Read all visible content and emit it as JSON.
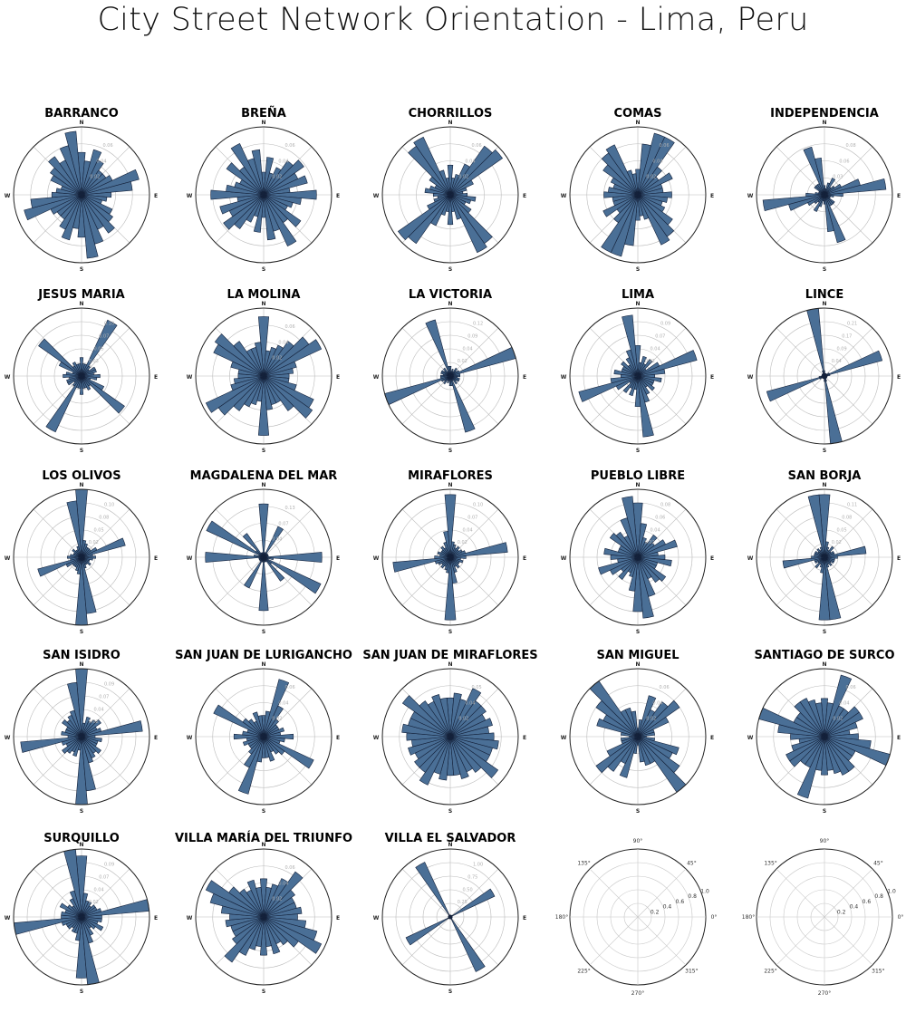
{
  "title": "City Street Network Orientation - Lima, Peru",
  "style": {
    "bar_fill": "#4a6f96",
    "bar_stroke": "#14213a",
    "grid_color": "#bbbbbb",
    "tick_label_color": "#b0b0b0"
  },
  "compass_labels": {
    "n": "N",
    "e": "E",
    "s": "S",
    "w": "W"
  },
  "empty_polar_labels": {
    "angles": [
      "90°",
      "45°",
      "0°",
      "315°",
      "270°",
      "225°",
      "180°",
      "135°"
    ],
    "radial": [
      "0.2",
      "0.4",
      "0.6",
      "0.8",
      "1.0"
    ]
  },
  "chart_data": [
    {
      "type": "polar-bar",
      "title": "BARRANCO",
      "radial_ticks": [
        "0.02",
        "0.04",
        "0.06"
      ],
      "rmax": 0.08,
      "bearing_step_deg": 10,
      "values": [
        0.05,
        0.04,
        0.055,
        0.045,
        0.035,
        0.035,
        0.04,
        0.07,
        0.06,
        0.035,
        0.03,
        0.025,
        0.04,
        0.045,
        0.055,
        0.045,
        0.06,
        0.075
      ]
    },
    {
      "type": "polar-bar",
      "title": "BREÑA",
      "radial_ticks": [
        "0.02",
        "0.04",
        "0.06"
      ],
      "rmax": 0.09,
      "bearing_step_deg": 10,
      "values": [
        0.03,
        0.05,
        0.03,
        0.04,
        0.055,
        0.065,
        0.05,
        0.06,
        0.035,
        0.07,
        0.05,
        0.04,
        0.035,
        0.06,
        0.045,
        0.075,
        0.05,
        0.06
      ]
    },
    {
      "type": "polar-bar",
      "title": "CHORRILLOS",
      "radial_ticks": [
        "0.02",
        "0.04",
        "0.06"
      ],
      "rmax": 0.08,
      "bearing_step_deg": 10,
      "values": [
        0.035,
        0.02,
        0.025,
        0.04,
        0.07,
        0.075,
        0.03,
        0.02,
        0.015,
        0.02,
        0.03,
        0.025,
        0.02,
        0.03,
        0.07,
        0.075,
        0.03,
        0.02
      ]
    },
    {
      "type": "polar-bar",
      "title": "COMAS",
      "radial_ticks": [
        "0.02",
        "0.04",
        "0.06"
      ],
      "rmax": 0.08,
      "bearing_step_deg": 10,
      "values": [
        0.03,
        0.06,
        0.075,
        0.075,
        0.04,
        0.03,
        0.045,
        0.03,
        0.03,
        0.04,
        0.035,
        0.03,
        0.035,
        0.05,
        0.06,
        0.065,
        0.03,
        0.025
      ]
    },
    {
      "type": "polar-bar",
      "title": "INDEPENDENCIA",
      "radial_ticks": [
        "0.03",
        "0.06",
        "0.08"
      ],
      "rmax": 0.11,
      "bearing_step_deg": 10,
      "values": [
        0.015,
        0.01,
        0.02,
        0.03,
        0.015,
        0.02,
        0.03,
        0.06,
        0.1,
        0.03,
        0.015,
        0.01,
        0.01,
        0.02,
        0.02,
        0.02,
        0.08,
        0.06
      ]
    },
    {
      "type": "polar-bar",
      "title": "JESUS MARIA",
      "radial_ticks": [
        "0.03",
        "0.05",
        "0.07",
        "0.10"
      ],
      "rmax": 0.11,
      "bearing_step_deg": 10,
      "values": [
        0.03,
        0.02,
        0.02,
        0.1,
        0.02,
        0.015,
        0.025,
        0.025,
        0.02,
        0.03,
        0.025,
        0.015,
        0.04,
        0.085,
        0.02,
        0.025,
        0.02,
        0.02
      ]
    },
    {
      "type": "polar-bar",
      "title": "LA MOLINA",
      "radial_ticks": [
        "0.02",
        "0.04",
        "0.06"
      ],
      "rmax": 0.08,
      "bearing_step_deg": 10,
      "values": [
        0.07,
        0.03,
        0.035,
        0.04,
        0.05,
        0.065,
        0.075,
        0.04,
        0.035,
        0.03,
        0.03,
        0.04,
        0.065,
        0.07,
        0.05,
        0.035,
        0.035,
        0.04
      ]
    },
    {
      "type": "polar-bar",
      "title": "LA VICTORIA",
      "radial_ticks": [
        "0.02",
        "0.04",
        "0.09",
        "0.12"
      ],
      "rmax": 0.14,
      "bearing_step_deg": 10,
      "values": [
        0.02,
        0.01,
        0.015,
        0.01,
        0.02,
        0.015,
        0.02,
        0.14,
        0.02,
        0.02,
        0.015,
        0.02,
        0.02,
        0.015,
        0.02,
        0.01,
        0.12,
        0.02
      ]
    },
    {
      "type": "polar-bar",
      "title": "LIMA",
      "radial_ticks": [
        "0.02",
        "0.04",
        "0.07",
        "0.09"
      ],
      "rmax": 0.1,
      "bearing_step_deg": 10,
      "values": [
        0.045,
        0.02,
        0.03,
        0.02,
        0.03,
        0.015,
        0.035,
        0.09,
        0.04,
        0.025,
        0.035,
        0.025,
        0.025,
        0.03,
        0.02,
        0.03,
        0.04,
        0.09
      ]
    },
    {
      "type": "polar-bar",
      "title": "LINCE",
      "radial_ticks": [
        "0.04",
        "0.09",
        "0.17",
        "0.21"
      ],
      "rmax": 0.25,
      "bearing_step_deg": 10,
      "values": [
        0.02,
        0.01,
        0.01,
        0.01,
        0.01,
        0.01,
        0.02,
        0.22,
        0.02,
        0.01,
        0.01,
        0.01,
        0.01,
        0.01,
        0.01,
        0.01,
        0.02,
        0.25
      ]
    },
    {
      "type": "polar-bar",
      "title": "LOS OLIVOS",
      "radial_ticks": [
        "0.02",
        "0.05",
        "0.08",
        "0.10"
      ],
      "rmax": 0.12,
      "bearing_step_deg": 10,
      "values": [
        0.12,
        0.03,
        0.025,
        0.02,
        0.02,
        0.02,
        0.03,
        0.08,
        0.02,
        0.025,
        0.02,
        0.015,
        0.015,
        0.02,
        0.015,
        0.015,
        0.02,
        0.1
      ]
    },
    {
      "type": "polar-bar",
      "title": "MAGDALENA DEL MAR",
      "radial_ticks": [
        "0.04",
        "0.07",
        "0.13"
      ],
      "rmax": 0.14,
      "bearing_step_deg": 10,
      "values": [
        0.11,
        0.01,
        0.01,
        0.07,
        0.01,
        0.01,
        0.01,
        0.01,
        0.01,
        0.12,
        0.02,
        0.01,
        0.13,
        0.02,
        0.06,
        0.01,
        0.01,
        0.01
      ]
    },
    {
      "type": "polar-bar",
      "title": "MIRAFLORES",
      "radial_ticks": [
        "0.02",
        "0.04",
        "0.07",
        "0.10"
      ],
      "rmax": 0.13,
      "bearing_step_deg": 10,
      "values": [
        0.12,
        0.03,
        0.025,
        0.02,
        0.025,
        0.02,
        0.025,
        0.03,
        0.11,
        0.03,
        0.02,
        0.025,
        0.02,
        0.02,
        0.025,
        0.02,
        0.03,
        0.05
      ]
    },
    {
      "type": "polar-bar",
      "title": "PUEBLO LIBRE",
      "radial_ticks": [
        "0.02",
        "0.04",
        "0.06",
        "0.08"
      ],
      "rmax": 0.1,
      "bearing_step_deg": 10,
      "values": [
        0.08,
        0.05,
        0.03,
        0.025,
        0.04,
        0.03,
        0.045,
        0.06,
        0.03,
        0.04,
        0.05,
        0.03,
        0.03,
        0.05,
        0.045,
        0.035,
        0.06,
        0.09
      ]
    },
    {
      "type": "polar-bar",
      "title": "SAN BORJA",
      "radial_ticks": [
        "0.02",
        "0.05",
        "0.08",
        "0.11"
      ],
      "rmax": 0.13,
      "bearing_step_deg": 10,
      "values": [
        0.12,
        0.03,
        0.02,
        0.015,
        0.025,
        0.015,
        0.02,
        0.02,
        0.08,
        0.025,
        0.02,
        0.02,
        0.02,
        0.015,
        0.02,
        0.015,
        0.02,
        0.12
      ]
    },
    {
      "type": "polar-bar",
      "title": "SAN ISIDRO",
      "radial_ticks": [
        "0.02",
        "0.04",
        "0.07",
        "0.09"
      ],
      "rmax": 0.1,
      "bearing_step_deg": 10,
      "values": [
        0.1,
        0.02,
        0.03,
        0.025,
        0.03,
        0.035,
        0.025,
        0.03,
        0.09,
        0.02,
        0.03,
        0.025,
        0.025,
        0.035,
        0.03,
        0.035,
        0.04,
        0.08
      ]
    },
    {
      "type": "polar-bar",
      "title": "SAN JUAN DE LURIGANCHO",
      "radial_ticks": [
        "0.02",
        "0.04",
        "0.06"
      ],
      "rmax": 0.08,
      "bearing_step_deg": 10,
      "values": [
        0.025,
        0.03,
        0.07,
        0.04,
        0.025,
        0.02,
        0.02,
        0.025,
        0.02,
        0.035,
        0.025,
        0.02,
        0.065,
        0.03,
        0.025,
        0.02,
        0.03,
        0.025
      ]
    },
    {
      "type": "polar-bar",
      "title": "SAN JUAN DE MIRAFLORES",
      "radial_ticks": [
        "0.02",
        "0.04",
        "0.05"
      ],
      "rmax": 0.07,
      "bearing_step_deg": 10,
      "values": [
        0.04,
        0.045,
        0.04,
        0.055,
        0.045,
        0.045,
        0.04,
        0.045,
        0.04,
        0.045,
        0.05,
        0.045,
        0.045,
        0.06,
        0.045,
        0.04,
        0.045,
        0.04
      ]
    },
    {
      "type": "polar-bar",
      "title": "SAN MIGUEL",
      "radial_ticks": [
        "0.02",
        "0.04",
        "0.06"
      ],
      "rmax": 0.08,
      "bearing_step_deg": 10,
      "values": [
        0.01,
        0.02,
        0.05,
        0.035,
        0.05,
        0.06,
        0.04,
        0.02,
        0.02,
        0.01,
        0.02,
        0.05,
        0.045,
        0.06,
        0.08,
        0.035,
        0.035,
        0.03
      ]
    },
    {
      "type": "polar-bar",
      "title": "SANTIAGO DE SURCO",
      "radial_ticks": [
        "0.02",
        "0.04",
        "0.06"
      ],
      "rmax": 0.08,
      "bearing_step_deg": 10,
      "values": [
        0.045,
        0.04,
        0.075,
        0.04,
        0.04,
        0.05,
        0.05,
        0.04,
        0.03,
        0.04,
        0.055,
        0.08,
        0.04,
        0.04,
        0.05,
        0.05,
        0.045,
        0.04
      ]
    },
    {
      "type": "polar-bar",
      "title": "SURQUILLO",
      "radial_ticks": [
        "0.02",
        "0.04",
        "0.07",
        "0.09"
      ],
      "rmax": 0.1,
      "bearing_step_deg": 10,
      "values": [
        0.09,
        0.035,
        0.025,
        0.025,
        0.02,
        0.025,
        0.025,
        0.03,
        0.1,
        0.03,
        0.03,
        0.025,
        0.035,
        0.025,
        0.02,
        0.03,
        0.04,
        0.1
      ]
    },
    {
      "type": "polar-bar",
      "title": "VILLA MARÍA DEL TRIUNFO",
      "radial_ticks": [
        "0.02",
        "0.04",
        "0.06"
      ],
      "rmax": 0.08,
      "bearing_step_deg": 10,
      "values": [
        0.045,
        0.035,
        0.04,
        0.05,
        0.065,
        0.045,
        0.04,
        0.04,
        0.045,
        0.04,
        0.05,
        0.065,
        0.075,
        0.05,
        0.04,
        0.035,
        0.045,
        0.035
      ]
    },
    {
      "type": "polar-bar",
      "title": "VILLA EL SALVADOR",
      "radial_ticks": [
        "0.25",
        "0.50",
        "0.75",
        "1.00"
      ],
      "rmax": 1.0,
      "bearing_step_deg": 10,
      "values": [
        0.03,
        0.02,
        0.02,
        0.03,
        0.02,
        0.03,
        0.72,
        0.03,
        0.02,
        0.03,
        0.02,
        0.03,
        0.02,
        0.03,
        0.02,
        0.89,
        0.03,
        0.02
      ]
    },
    {
      "type": "polar-empty",
      "title": "",
      "radial_ticks": [
        "0.2",
        "0.4",
        "0.6",
        "0.8",
        "1.0"
      ]
    },
    {
      "type": "polar-empty",
      "title": "",
      "radial_ticks": [
        "0.2",
        "0.4",
        "0.6",
        "0.8",
        "1.0"
      ]
    }
  ]
}
